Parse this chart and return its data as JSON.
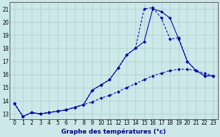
{
  "title": "Graphe des températures (°c)",
  "bg_color": "#cce8e8",
  "grid_color": "#aacccc",
  "line_color": "#0000aa",
  "xmin": -0.5,
  "xmax": 23.5,
  "ymin": 12.6,
  "ymax": 21.5,
  "yticks": [
    13,
    14,
    15,
    16,
    17,
    18,
    19,
    20,
    21
  ],
  "xticks": [
    0,
    1,
    2,
    3,
    4,
    5,
    6,
    7,
    8,
    9,
    10,
    11,
    12,
    13,
    14,
    15,
    16,
    17,
    18,
    19,
    20,
    21,
    22,
    23
  ],
  "line1_x": [
    0,
    1,
    2,
    3,
    4,
    5,
    6,
    7,
    8,
    9,
    10,
    11,
    12,
    13,
    14,
    15,
    16,
    17,
    18,
    19,
    20,
    21,
    22,
    23
  ],
  "line1_y": [
    13.8,
    12.8,
    13.1,
    13.0,
    13.1,
    13.2,
    13.3,
    13.5,
    13.7,
    14.8,
    15.2,
    15.6,
    16.5,
    17.5,
    18.0,
    18.5,
    21.0,
    20.8,
    20.3,
    18.7,
    17.0,
    16.3,
    15.9,
    15.9
  ],
  "line2_x": [
    0,
    1,
    2,
    3,
    4,
    5,
    6,
    7,
    8,
    9,
    10,
    11,
    12,
    13,
    14,
    15,
    16,
    17,
    18,
    19,
    20,
    21,
    22,
    23
  ],
  "line2_y": [
    13.8,
    12.8,
    13.1,
    13.0,
    13.1,
    13.2,
    13.3,
    13.5,
    13.7,
    14.8,
    15.2,
    15.6,
    16.5,
    17.5,
    18.0,
    21.0,
    21.1,
    20.3,
    18.7,
    18.8,
    17.0,
    16.3,
    15.9,
    15.9
  ],
  "line3_x": [
    0,
    1,
    2,
    3,
    4,
    5,
    6,
    7,
    8,
    9,
    10,
    11,
    12,
    13,
    14,
    15,
    16,
    17,
    18,
    19,
    20,
    21,
    22,
    23
  ],
  "line3_y": [
    13.8,
    12.8,
    13.1,
    13.0,
    13.1,
    13.2,
    13.3,
    13.5,
    13.7,
    13.9,
    14.2,
    14.4,
    14.7,
    15.0,
    15.3,
    15.6,
    15.9,
    16.1,
    16.3,
    16.4,
    16.4,
    16.3,
    16.1,
    15.9
  ]
}
